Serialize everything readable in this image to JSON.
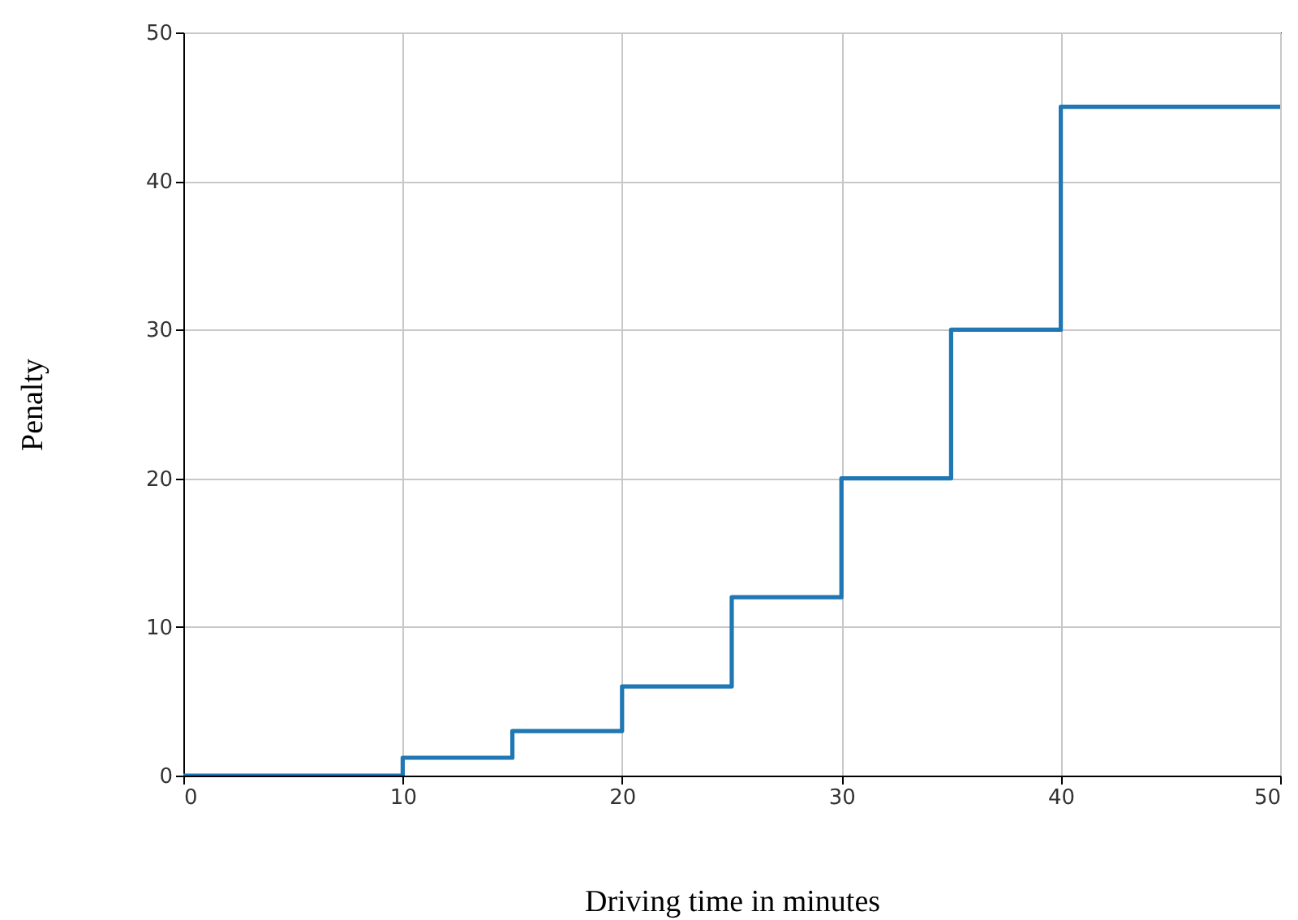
{
  "chart_data": {
    "type": "step",
    "xlabel": "Driving time in minutes",
    "ylabel": "Penalty",
    "x": [
      0,
      10,
      15,
      20,
      25,
      30,
      35,
      40,
      50
    ],
    "values": [
      0,
      1.2,
      3,
      6,
      12,
      20,
      30,
      45,
      45
    ],
    "color": "#1f77b4",
    "xlim": [
      0,
      50
    ],
    "ylim": [
      0,
      50
    ],
    "xticks": [
      0,
      10,
      20,
      30,
      40,
      50
    ],
    "yticks": [
      0,
      10,
      20,
      30,
      40,
      50
    ],
    "grid": true
  }
}
